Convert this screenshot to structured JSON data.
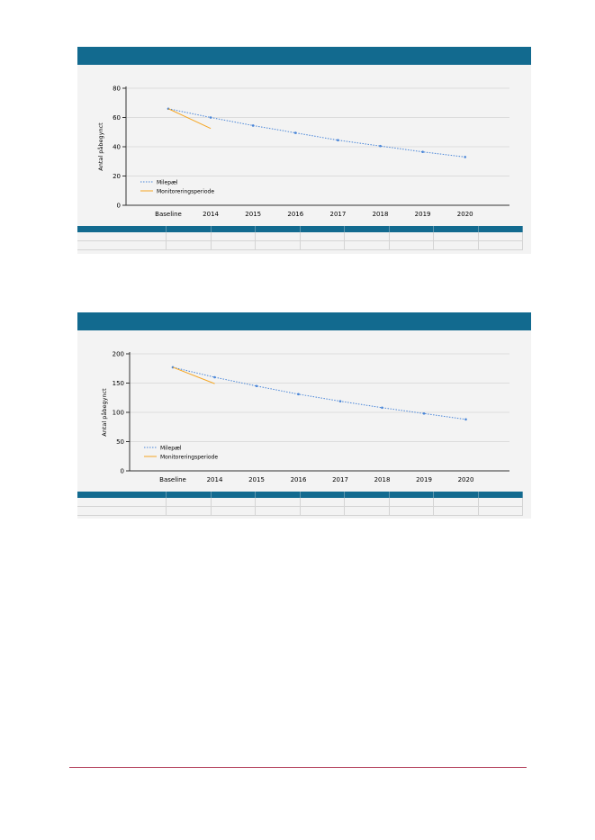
{
  "colors": {
    "header": "#126a8f",
    "panel_bg": "#f3f3f3",
    "milepael": "#4a86d8",
    "monitorering": "#f5a623",
    "footer_rule": "#b74a64"
  },
  "chart_data": [
    {
      "type": "line",
      "title": "",
      "ylabel": "Antal påbegynct",
      "xlabel": "",
      "categories": [
        "Baseline",
        "2014",
        "2015",
        "2016",
        "2017",
        "2018",
        "2019",
        "2020"
      ],
      "ylim": [
        0,
        80
      ],
      "yticks": [
        0,
        20,
        40,
        60,
        80
      ],
      "grid": true,
      "legend_position": "bottom-left",
      "series": [
        {
          "name": "Milepæl",
          "style": "dotted",
          "color": "#4a86d8",
          "values": [
            66,
            60,
            54.5,
            49.5,
            44.5,
            40.5,
            36.5,
            33
          ]
        },
        {
          "name": "Monitoreringsperiode",
          "style": "solid",
          "color": "#f5a623",
          "values": [
            66,
            52.5,
            null,
            null,
            null,
            null,
            null,
            null
          ]
        }
      ]
    },
    {
      "type": "line",
      "title": "",
      "ylabel": "Antal påbegynct",
      "xlabel": "",
      "categories": [
        "Baseline",
        "2014",
        "2015",
        "2016",
        "2017",
        "2018",
        "2019",
        "2020"
      ],
      "ylim": [
        0,
        200
      ],
      "yticks": [
        0,
        50,
        100,
        150,
        200
      ],
      "grid": true,
      "legend_position": "bottom-left",
      "series": [
        {
          "name": "Milepæl",
          "style": "dotted",
          "color": "#4a86d8",
          "values": [
            177,
            160,
            145,
            131,
            119,
            108,
            98,
            88
          ]
        },
        {
          "name": "Monitoreringsperiode",
          "style": "solid",
          "color": "#f5a623",
          "values": [
            177,
            149,
            null,
            null,
            null,
            null,
            null,
            null
          ]
        }
      ]
    }
  ]
}
